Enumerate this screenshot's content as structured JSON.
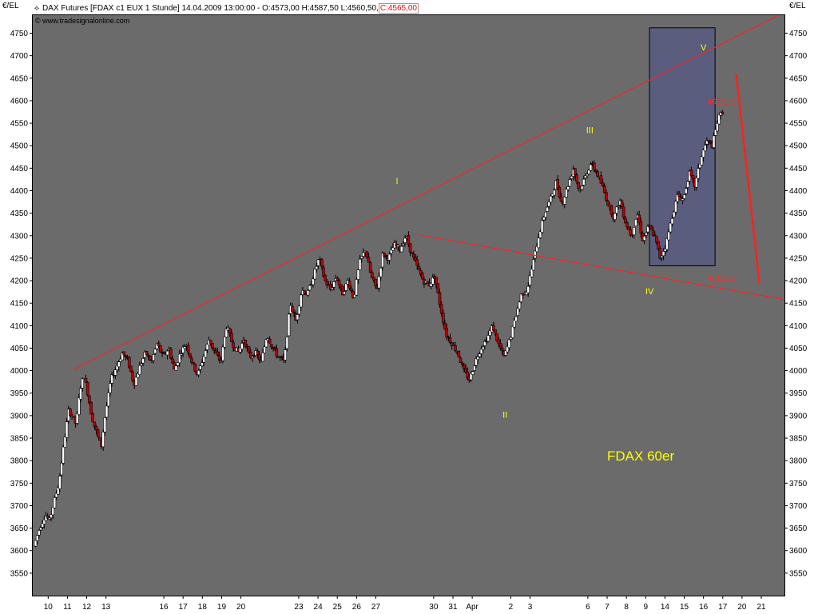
{
  "header": {
    "instrument": "DAX Futures [FDAX c1 EUX  1 Stunde] 14.04.2009 13:00:00 - O:4573,00 H:4587,50 L:4560,50",
    "close": "C:4565,00",
    "watermark": "www.tradesignalonline.com",
    "unit_left": "€/EL",
    "unit_right": "€/EL"
  },
  "colors": {
    "plot_background": "#6b6b6b",
    "trendline": "#ff2020",
    "wave_labels": "#ffff00",
    "level_labels": "#ff2a2a",
    "box_fill": "#5a5d7e",
    "candle_up": "#ffffff",
    "candle_down": "#c00000"
  },
  "chart_data": {
    "type": "candlestick",
    "title": "FDAX 60er",
    "ylim": [
      3500,
      4790
    ],
    "y_ticks": [
      3550,
      3600,
      3650,
      3700,
      3750,
      3800,
      3850,
      3900,
      3950,
      4000,
      4050,
      4100,
      4150,
      4200,
      4250,
      4300,
      4350,
      4400,
      4450,
      4500,
      4550,
      4600,
      4650,
      4700,
      4750
    ],
    "x_tick_labels": [
      "10",
      "11",
      "12",
      "13",
      "16",
      "17",
      "18",
      "19",
      "20",
      "23",
      "24",
      "25",
      "26",
      "27",
      "30",
      "31",
      "Apr",
      "2",
      "3",
      "6",
      "7",
      "8",
      "9",
      "14",
      "15",
      "16",
      "17",
      "20",
      "21"
    ],
    "x_positions": [
      10,
      11,
      12,
      13,
      16,
      17,
      18,
      19,
      20,
      23,
      24,
      25,
      26,
      27,
      30,
      31,
      32,
      34,
      35,
      38,
      39,
      40,
      41,
      42,
      43,
      44,
      45,
      46,
      47
    ],
    "xlim": [
      9.2,
      48.2
    ],
    "price_path": [
      [
        9.3,
        3610
      ],
      [
        9.6,
        3650
      ],
      [
        9.9,
        3680
      ],
      [
        10.1,
        3665
      ],
      [
        10.3,
        3700
      ],
      [
        10.6,
        3750
      ],
      [
        10.9,
        3850
      ],
      [
        11.1,
        3910
      ],
      [
        11.3,
        3900
      ],
      [
        11.5,
        3880
      ],
      [
        11.7,
        3960
      ],
      [
        11.9,
        3990
      ],
      [
        12.1,
        3950
      ],
      [
        12.3,
        3900
      ],
      [
        12.5,
        3870
      ],
      [
        12.8,
        3830
      ],
      [
        13.0,
        3900
      ],
      [
        13.3,
        3980
      ],
      [
        13.6,
        4010
      ],
      [
        13.9,
        4040
      ],
      [
        14.2,
        4020
      ],
      [
        14.5,
        3970
      ],
      [
        14.8,
        4010
      ],
      [
        15.1,
        4040
      ],
      [
        15.4,
        4020
      ],
      [
        15.7,
        4060
      ],
      [
        16.0,
        4030
      ],
      [
        16.3,
        4050
      ],
      [
        16.6,
        4000
      ],
      [
        16.9,
        4040
      ],
      [
        17.2,
        4060
      ],
      [
        17.5,
        4020
      ],
      [
        17.8,
        3990
      ],
      [
        18.1,
        4030
      ],
      [
        18.4,
        4070
      ],
      [
        18.7,
        4040
      ],
      [
        19.0,
        4020
      ],
      [
        19.3,
        4100
      ],
      [
        19.6,
        4060
      ],
      [
        19.9,
        4040
      ],
      [
        20.2,
        4070
      ],
      [
        20.5,
        4030
      ],
      [
        20.8,
        4040
      ],
      [
        21.1,
        4020
      ],
      [
        21.4,
        4080
      ],
      [
        21.7,
        4050
      ],
      [
        22.0,
        4030
      ],
      [
        22.3,
        4020
      ],
      [
        22.6,
        4150
      ],
      [
        22.9,
        4110
      ],
      [
        23.2,
        4180
      ],
      [
        23.5,
        4170
      ],
      [
        23.8,
        4210
      ],
      [
        24.1,
        4250
      ],
      [
        24.4,
        4200
      ],
      [
        24.7,
        4180
      ],
      [
        25.0,
        4210
      ],
      [
        25.3,
        4170
      ],
      [
        25.6,
        4200
      ],
      [
        25.9,
        4160
      ],
      [
        26.2,
        4240
      ],
      [
        26.5,
        4270
      ],
      [
        26.8,
        4210
      ],
      [
        27.1,
        4180
      ],
      [
        27.4,
        4260
      ],
      [
        27.7,
        4250
      ],
      [
        28.0,
        4280
      ],
      [
        28.3,
        4270
      ],
      [
        28.6,
        4300
      ],
      [
        28.9,
        4260
      ],
      [
        29.2,
        4230
      ],
      [
        29.5,
        4200
      ],
      [
        29.8,
        4190
      ],
      [
        30.1,
        4210
      ],
      [
        30.4,
        4140
      ],
      [
        30.7,
        4080
      ],
      [
        31.0,
        4060
      ],
      [
        31.3,
        4040
      ],
      [
        31.6,
        4000
      ],
      [
        31.9,
        3980
      ],
      [
        32.2,
        4020
      ],
      [
        32.5,
        4050
      ],
      [
        32.8,
        4070
      ],
      [
        33.1,
        4100
      ],
      [
        33.4,
        4060
      ],
      [
        33.7,
        4030
      ],
      [
        34.0,
        4070
      ],
      [
        34.3,
        4120
      ],
      [
        34.6,
        4170
      ],
      [
        34.9,
        4180
      ],
      [
        35.2,
        4240
      ],
      [
        35.5,
        4300
      ],
      [
        35.8,
        4350
      ],
      [
        36.1,
        4380
      ],
      [
        36.4,
        4420
      ],
      [
        36.7,
        4370
      ],
      [
        37.0,
        4410
      ],
      [
        37.3,
        4450
      ],
      [
        37.6,
        4400
      ],
      [
        37.9,
        4430
      ],
      [
        38.2,
        4460
      ],
      [
        38.5,
        4440
      ],
      [
        38.8,
        4410
      ],
      [
        39.1,
        4370
      ],
      [
        39.4,
        4340
      ],
      [
        39.7,
        4380
      ],
      [
        40.0,
        4330
      ],
      [
        40.3,
        4300
      ],
      [
        40.6,
        4350
      ],
      [
        40.9,
        4290
      ],
      [
        41.2,
        4320
      ],
      [
        41.5,
        4300
      ],
      [
        41.8,
        4250
      ],
      [
        42.1,
        4280
      ],
      [
        42.4,
        4340
      ],
      [
        42.7,
        4390
      ],
      [
        43.0,
        4380
      ],
      [
        43.3,
        4440
      ],
      [
        43.6,
        4410
      ],
      [
        43.9,
        4470
      ],
      [
        44.2,
        4510
      ],
      [
        44.5,
        4500
      ],
      [
        44.8,
        4560
      ],
      [
        45.0,
        4575
      ]
    ],
    "trendlines": [
      {
        "from": [
          11.3,
          4002
        ],
        "to": [
          48.2,
          4796
        ]
      },
      {
        "from": [
          29.2,
          4302
        ],
        "to": [
          48.2,
          4158
        ]
      },
      {
        "from": [
          45.7,
          4658
        ],
        "to": [
          46.9,
          4195
        ],
        "bold": true
      }
    ],
    "target_box": {
      "x_range": [
        41.2,
        44.6
      ],
      "y_range": [
        4233,
        4762
      ]
    },
    "annotations": [
      {
        "text": "I",
        "x": 28.1,
        "y": 4415,
        "kind": "wave"
      },
      {
        "text": "II",
        "x": 33.7,
        "y": 3895,
        "kind": "wave"
      },
      {
        "text": "III",
        "x": 38.1,
        "y": 4528,
        "kind": "wave"
      },
      {
        "text": "IV",
        "x": 41.2,
        "y": 4170,
        "kind": "wave"
      },
      {
        "text": "V",
        "x": 44.0,
        "y": 4712,
        "kind": "wave"
      },
      {
        "text": "4623,18",
        "x": 44.2,
        "y": 4592,
        "kind": "level"
      },
      {
        "text": "4212,18",
        "x": 44.2,
        "y": 4200,
        "kind": "level"
      },
      {
        "text": "FDAX 60er",
        "x": 39.0,
        "y": 3800,
        "kind": "title"
      }
    ]
  }
}
